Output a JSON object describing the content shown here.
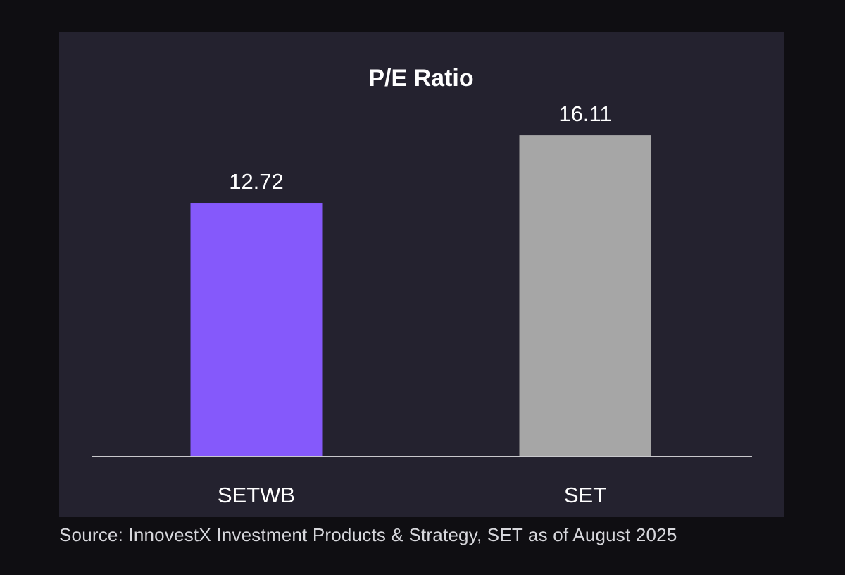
{
  "colors": {
    "page_background": "#0f0e12",
    "panel_background": "#24222f",
    "baseline": "#c8c8cc",
    "text": "#ffffff"
  },
  "chart_data": {
    "type": "bar",
    "title": "P/E Ratio",
    "categories": [
      "SETWB",
      "SET"
    ],
    "values": [
      12.72,
      16.11
    ],
    "value_labels": [
      "12.72",
      "16.11"
    ],
    "bar_colors": [
      "#8559fb",
      "#a6a6a6"
    ],
    "xlabel": "",
    "ylabel": "",
    "ylim": [
      0,
      20
    ],
    "grid": false,
    "legend": "none"
  },
  "footer": {
    "source": "Source: InnovestX Investment Products & Strategy, SET as of August 2025"
  }
}
